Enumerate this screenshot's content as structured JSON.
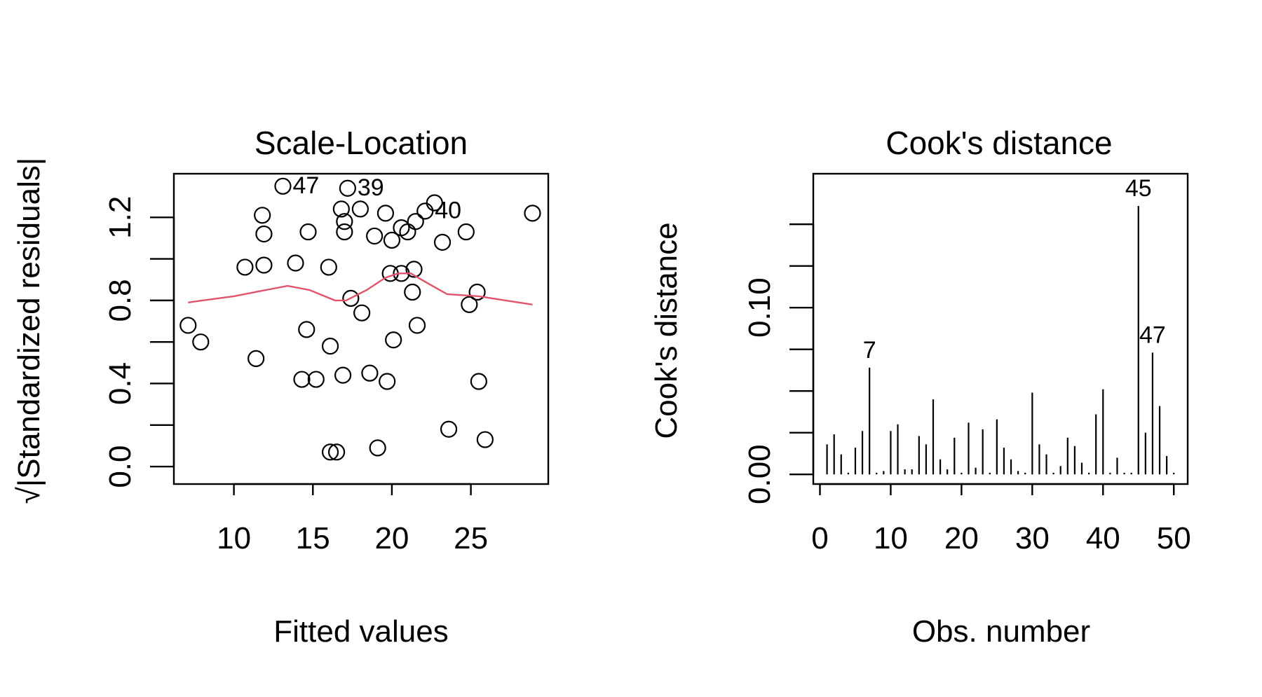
{
  "colors": {
    "foreground": "#000000",
    "smoother": "#DF536B",
    "background": "#FFFFFF"
  },
  "chart_data": [
    {
      "type": "scatter",
      "title": "Scale-Location",
      "xlabel": "Fitted values",
      "ylabel": "√|Standardized residuals|",
      "xlim": [
        6.2,
        29.9
      ],
      "ylim": [
        -0.084,
        1.41
      ],
      "xticks": [
        10,
        15,
        20,
        25
      ],
      "xtick_labels": [
        "10",
        "15",
        "20",
        "25"
      ],
      "yticks": [
        0.0,
        0.2,
        0.4,
        0.6,
        0.8,
        1.0,
        1.2
      ],
      "ytick_labels": [
        {
          "value": 0.0,
          "label": "0.0"
        },
        {
          "value": 0.4,
          "label": "0.4"
        },
        {
          "value": 0.8,
          "label": "0.8"
        },
        {
          "value": 1.2,
          "label": "1.2"
        }
      ],
      "grid": false,
      "points": [
        [
          7.1,
          0.68
        ],
        [
          7.9,
          0.6
        ],
        [
          10.7,
          0.96
        ],
        [
          11.4,
          0.52
        ],
        [
          11.8,
          1.21
        ],
        [
          11.9,
          0.97
        ],
        [
          11.9,
          1.12
        ],
        [
          13.1,
          1.35
        ],
        [
          13.9,
          0.98
        ],
        [
          14.3,
          0.42
        ],
        [
          14.6,
          0.66
        ],
        [
          14.7,
          1.13
        ],
        [
          15.2,
          0.42
        ],
        [
          16.0,
          0.96
        ],
        [
          16.1,
          0.58
        ],
        [
          16.1,
          0.07
        ],
        [
          16.5,
          0.07
        ],
        [
          16.8,
          1.24
        ],
        [
          16.9,
          0.44
        ],
        [
          17.0,
          1.13
        ],
        [
          17.0,
          1.18
        ],
        [
          17.2,
          1.34
        ],
        [
          17.4,
          0.81
        ],
        [
          18.0,
          1.24
        ],
        [
          18.1,
          0.74
        ],
        [
          18.6,
          0.45
        ],
        [
          18.9,
          1.11
        ],
        [
          19.1,
          0.09
        ],
        [
          19.6,
          1.22
        ],
        [
          19.7,
          0.41
        ],
        [
          19.9,
          0.93
        ],
        [
          20.0,
          1.09
        ],
        [
          20.1,
          0.61
        ],
        [
          20.6,
          1.15
        ],
        [
          20.6,
          0.93
        ],
        [
          21.0,
          1.13
        ],
        [
          21.3,
          0.84
        ],
        [
          21.4,
          0.95
        ],
        [
          21.5,
          1.18
        ],
        [
          21.6,
          0.68
        ],
        [
          22.1,
          1.23
        ],
        [
          22.7,
          1.27
        ],
        [
          23.2,
          1.08
        ],
        [
          23.6,
          0.18
        ],
        [
          24.7,
          1.13
        ],
        [
          24.9,
          0.78
        ],
        [
          25.4,
          0.84
        ],
        [
          25.5,
          0.41
        ],
        [
          25.9,
          0.13
        ],
        [
          28.9,
          1.22
        ]
      ],
      "smoother": [
        [
          7.1,
          0.79
        ],
        [
          8.0,
          0.8
        ],
        [
          10.0,
          0.82
        ],
        [
          12.0,
          0.85
        ],
        [
          13.4,
          0.87
        ],
        [
          14.8,
          0.85
        ],
        [
          16.4,
          0.8
        ],
        [
          17.1,
          0.8
        ],
        [
          18.4,
          0.85
        ],
        [
          19.6,
          0.91
        ],
        [
          20.4,
          0.93
        ],
        [
          21.2,
          0.93
        ],
        [
          22.1,
          0.89
        ],
        [
          23.5,
          0.83
        ],
        [
          25.5,
          0.82
        ],
        [
          27.2,
          0.8
        ],
        [
          28.9,
          0.78
        ]
      ],
      "point_labels": [
        {
          "text": "47",
          "x": 13.1,
          "y": 1.35
        },
        {
          "text": "39",
          "x": 17.2,
          "y": 1.34
        },
        {
          "text": "40",
          "x": 22.1,
          "y": 1.23
        }
      ]
    },
    {
      "type": "bar",
      "title": "Cook's distance",
      "xlabel": "Obs. number",
      "ylabel": "Cook's distance",
      "xlim": [
        -0.94,
        51.96
      ],
      "ylim": [
        -0.0058,
        0.1803
      ],
      "xticks": [
        0,
        10,
        20,
        30,
        40,
        50
      ],
      "xtick_labels": [
        "0",
        "10",
        "20",
        "30",
        "40",
        "50"
      ],
      "yticks": [
        0.0,
        0.025,
        0.05,
        0.075,
        0.1,
        0.125,
        0.15
      ],
      "ytick_labels": [
        {
          "value": 0.0,
          "label": "0.00"
        },
        {
          "value": 0.1,
          "label": "0.10"
        }
      ],
      "grid": false,
      "x": [
        1,
        2,
        3,
        4,
        5,
        6,
        7,
        8,
        9,
        10,
        11,
        12,
        13,
        14,
        15,
        16,
        17,
        18,
        19,
        20,
        21,
        22,
        23,
        24,
        25,
        26,
        27,
        28,
        29,
        30,
        31,
        32,
        33,
        34,
        35,
        36,
        37,
        38,
        39,
        40,
        41,
        42,
        43,
        44,
        45,
        46,
        47,
        48,
        49,
        50
      ],
      "values": [
        0.018,
        0.024,
        0.012,
        0.001,
        0.016,
        0.026,
        0.064,
        0.001,
        0.002,
        0.026,
        0.03,
        0.003,
        0.003,
        0.023,
        0.018,
        0.045,
        0.009,
        0.003,
        0.022,
        0.001,
        0.031,
        0.004,
        0.027,
        0.001,
        0.033,
        0.016,
        0.009,
        0.002,
        0.001,
        0.049,
        0.018,
        0.012,
        0.001,
        0.005,
        0.022,
        0.017,
        0.007,
        0.001,
        0.036,
        0.051,
        0.001,
        0.01,
        0.001,
        0.001,
        0.161,
        0.025,
        0.073,
        0.041,
        0.011,
        0.001
      ],
      "point_labels": [
        {
          "text": "7",
          "x": 7,
          "y": 0.064
        },
        {
          "text": "45",
          "x": 45,
          "y": 0.161
        },
        {
          "text": "47",
          "x": 47,
          "y": 0.073
        }
      ]
    }
  ]
}
